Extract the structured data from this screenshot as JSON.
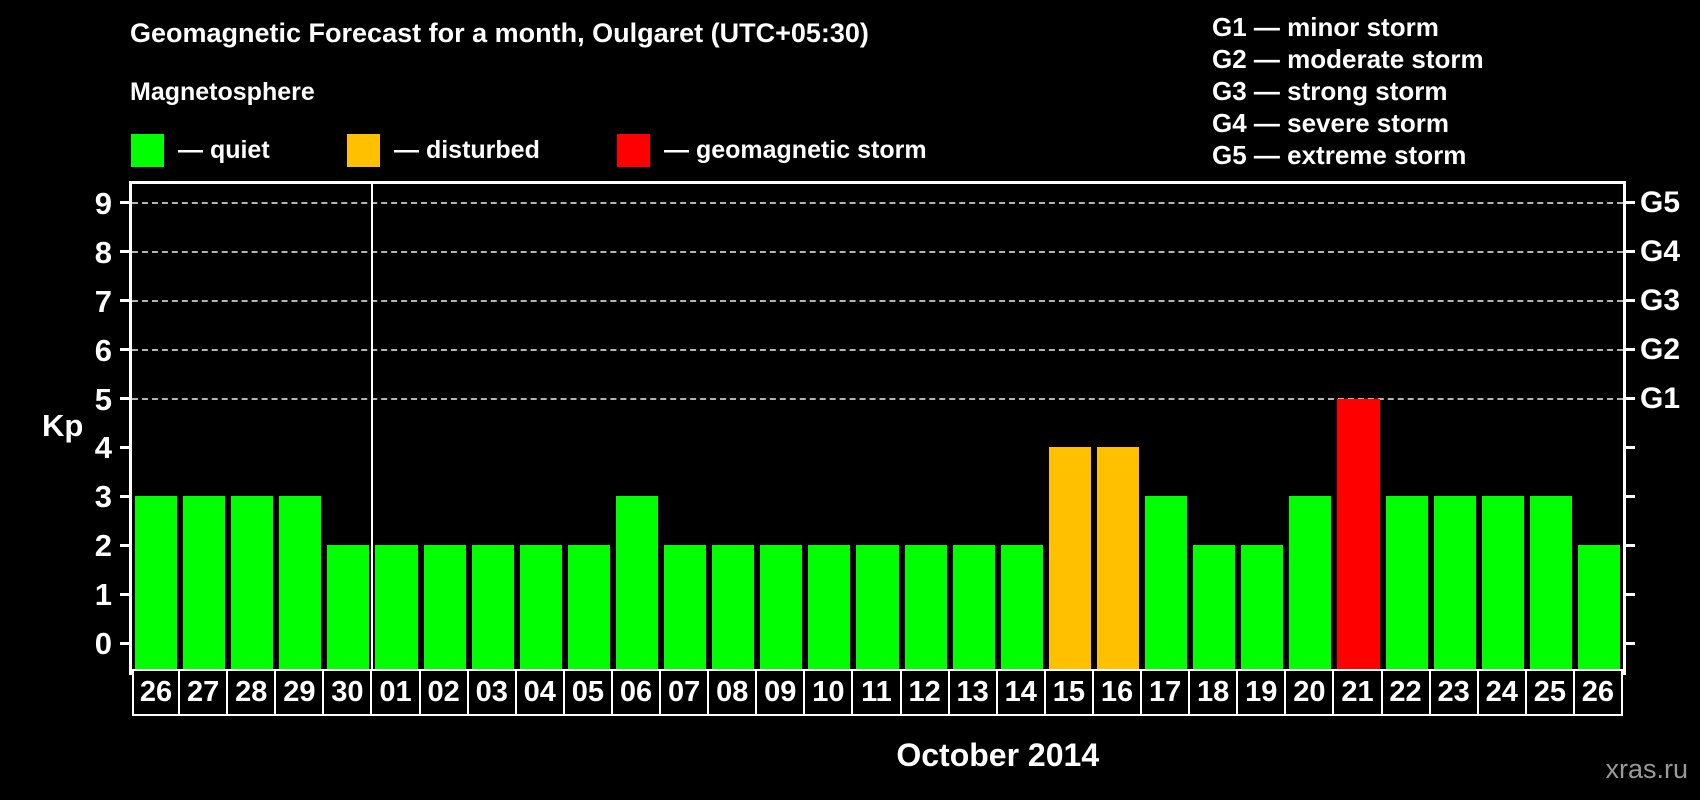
{
  "title": "Geomagnetic Forecast for a month, Oulgaret (UTC+05:30)",
  "legend": {
    "heading": "Magnetosphere",
    "items": [
      {
        "name": "quiet",
        "label": "— quiet",
        "color": "#00ff00"
      },
      {
        "name": "disturbed",
        "label": "— disturbed",
        "color": "#ffc000"
      },
      {
        "name": "storm",
        "label": "— geomagnetic storm",
        "color": "#ff0000"
      }
    ]
  },
  "storm_scale_legend": [
    "G1 — minor storm",
    "G2 — moderate storm",
    "G3 — strong storm",
    "G4 — severe storm",
    "G5 — extreme storm"
  ],
  "watermark": "xras.ru",
  "chart_data": {
    "type": "bar",
    "title": "Geomagnetic Forecast for a month, Oulgaret (UTC+05:30)",
    "ylabel": "Kp",
    "xlabel": "October 2014",
    "ylim": [
      0,
      9
    ],
    "yticks": [
      0,
      1,
      2,
      3,
      4,
      5,
      6,
      7,
      8,
      9
    ],
    "gridlines_at": [
      5,
      6,
      7,
      8,
      9
    ],
    "grid": "dashed horizontal at Kp 5-9 only",
    "right_axis_labels": {
      "5": "G1",
      "6": "G2",
      "7": "G3",
      "8": "G4",
      "9": "G5"
    },
    "month_boundary_after_index": 4,
    "categories": [
      "26",
      "27",
      "28",
      "29",
      "30",
      "01",
      "02",
      "03",
      "04",
      "05",
      "06",
      "07",
      "08",
      "09",
      "10",
      "11",
      "12",
      "13",
      "14",
      "15",
      "16",
      "17",
      "18",
      "19",
      "20",
      "21",
      "22",
      "23",
      "24",
      "25",
      "26"
    ],
    "values": [
      3,
      3,
      3,
      3,
      2,
      2,
      2,
      2,
      2,
      2,
      3,
      2,
      2,
      2,
      2,
      2,
      2,
      2,
      2,
      4,
      4,
      3,
      2,
      2,
      3,
      5,
      3,
      3,
      3,
      3,
      2
    ],
    "status": [
      "quiet",
      "quiet",
      "quiet",
      "quiet",
      "quiet",
      "quiet",
      "quiet",
      "quiet",
      "quiet",
      "quiet",
      "quiet",
      "quiet",
      "quiet",
      "quiet",
      "quiet",
      "quiet",
      "quiet",
      "quiet",
      "quiet",
      "disturbed",
      "disturbed",
      "quiet",
      "quiet",
      "quiet",
      "quiet",
      "storm",
      "quiet",
      "quiet",
      "quiet",
      "quiet",
      "quiet"
    ],
    "colors": {
      "quiet": "#00ff00",
      "disturbed": "#ffc000",
      "storm": "#ff0000"
    }
  }
}
